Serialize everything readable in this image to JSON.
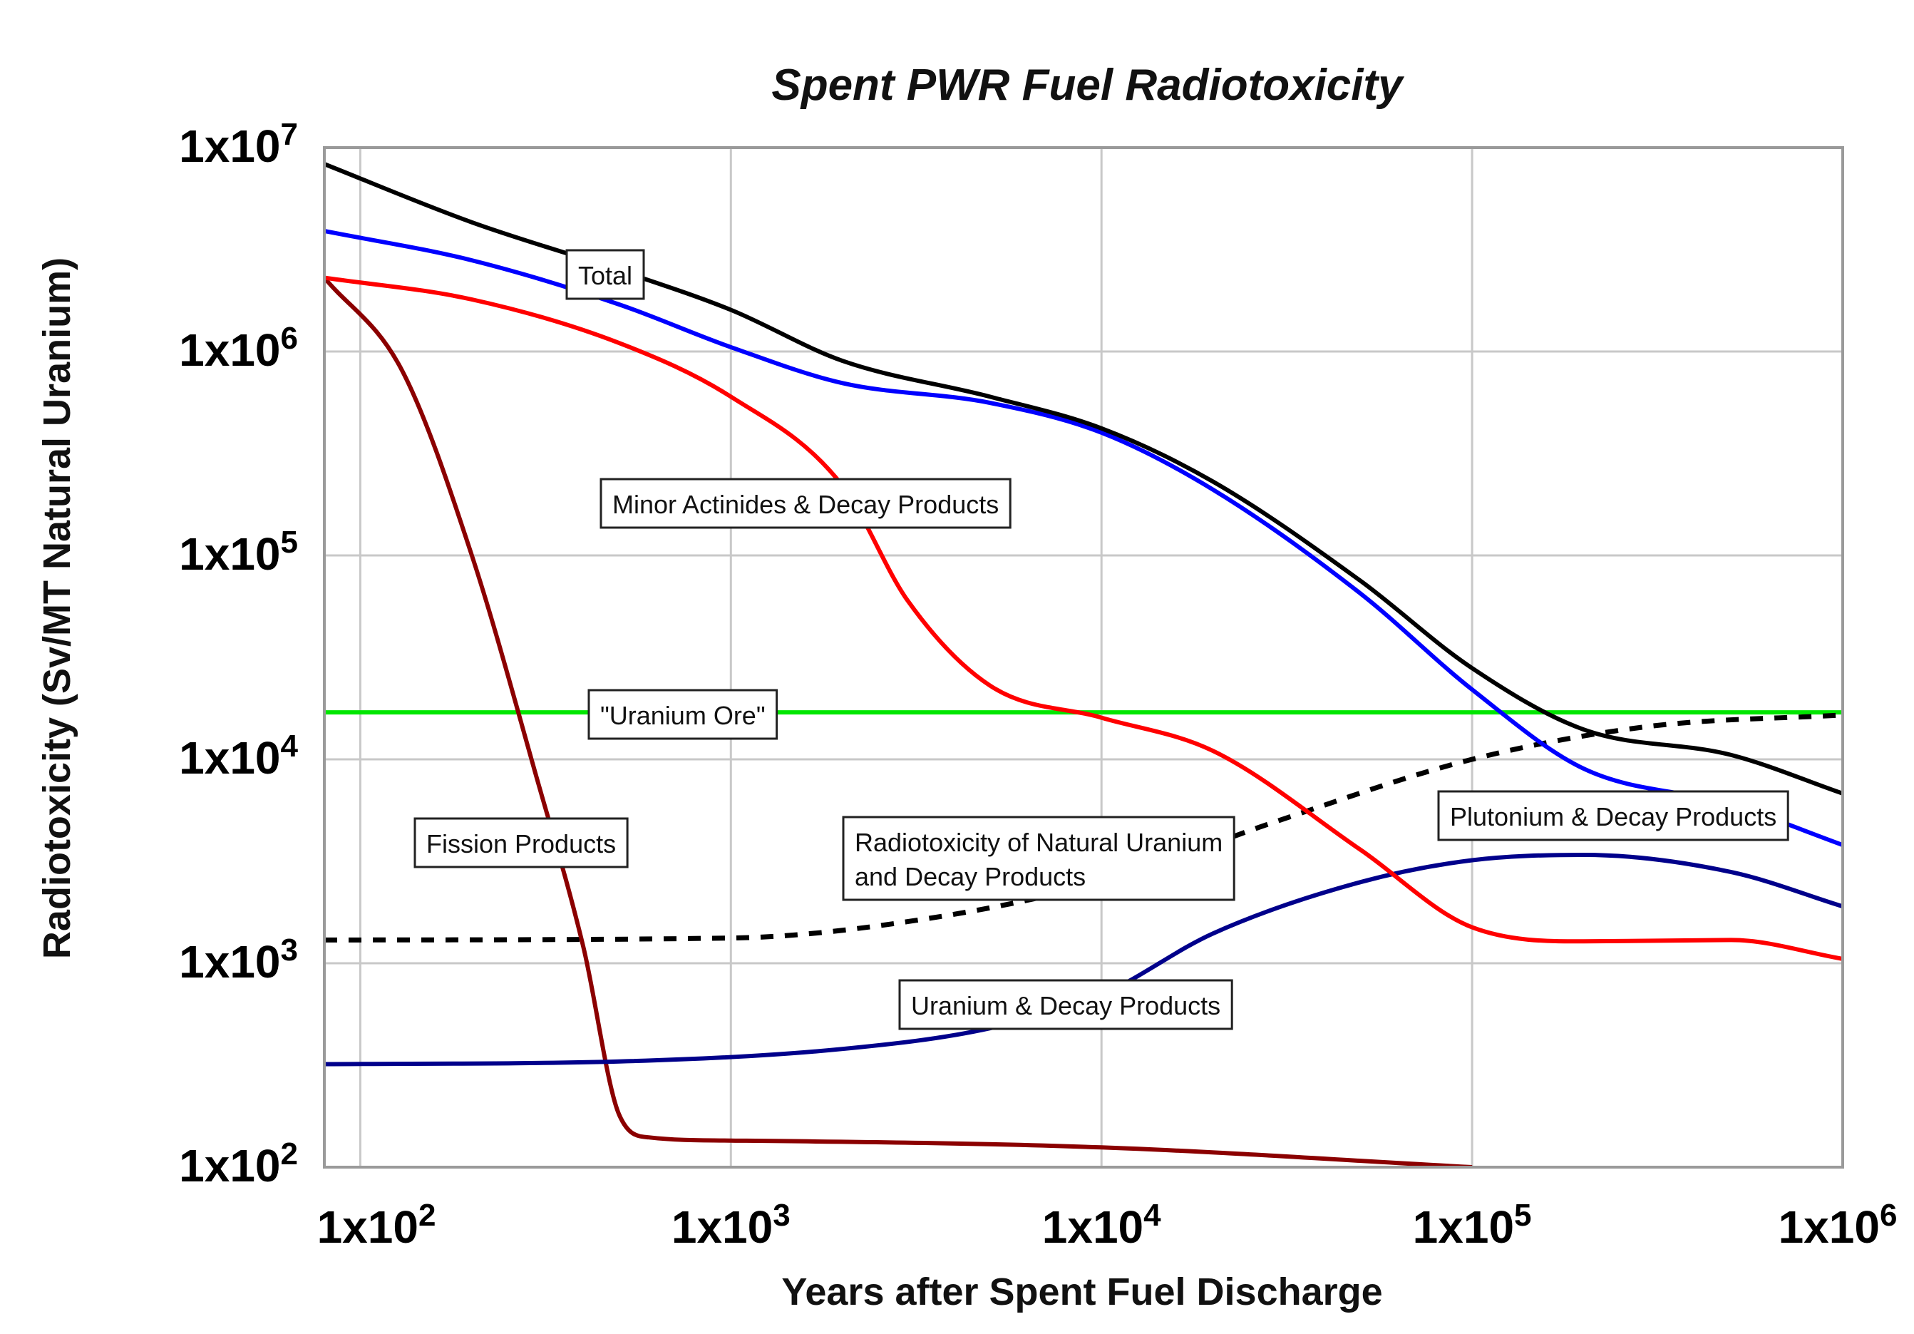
{
  "chart_data": {
    "type": "line",
    "title": "Spent PWR Fuel Radiotoxicity",
    "xlabel": "Years after Spent Fuel Discharge",
    "ylabel": "Radiotoxicity (Sv/MT Natural Uranium)",
    "x_scale": "log",
    "y_scale": "log",
    "xlim": [
      80,
      1000000
    ],
    "ylim": [
      100,
      10000000
    ],
    "grid": true,
    "x_ticks": [
      {
        "value": 100,
        "base": "1x10",
        "exp": "2"
      },
      {
        "value": 1000,
        "base": "1x10",
        "exp": "3"
      },
      {
        "value": 10000,
        "base": "1x10",
        "exp": "4"
      },
      {
        "value": 100000,
        "base": "1x10",
        "exp": "5"
      },
      {
        "value": 1000000,
        "base": "1x10",
        "exp": "6"
      }
    ],
    "y_ticks": [
      {
        "value": 100,
        "base": "1x10",
        "exp": "2"
      },
      {
        "value": 1000,
        "base": "1x10",
        "exp": "3"
      },
      {
        "value": 10000,
        "base": "1x10",
        "exp": "4"
      },
      {
        "value": 100000,
        "base": "1x10",
        "exp": "5"
      },
      {
        "value": 1000000,
        "base": "1x10",
        "exp": "6"
      },
      {
        "value": 10000000,
        "base": "1x10",
        "exp": "7"
      }
    ],
    "series": [
      {
        "name": "Total",
        "color": "#000000",
        "dash": false,
        "points": [
          [
            80,
            8300000
          ],
          [
            200,
            4300000
          ],
          [
            500,
            2500000
          ],
          [
            1000,
            1600000
          ],
          [
            2000,
            900000
          ],
          [
            5000,
            600000
          ],
          [
            10000,
            420000
          ],
          [
            20000,
            230000
          ],
          [
            50000,
            75000
          ],
          [
            100000,
            28000
          ],
          [
            200000,
            14000
          ],
          [
            500000,
            10500
          ],
          [
            1000000,
            6800
          ]
        ]
      },
      {
        "name": "Minor Actinides & Decay Products",
        "color": "#0000ff",
        "dash": false,
        "points": [
          [
            80,
            3900000
          ],
          [
            200,
            2800000
          ],
          [
            500,
            1700000
          ],
          [
            1000,
            1050000
          ],
          [
            2000,
            700000
          ],
          [
            5000,
            560000
          ],
          [
            10000,
            400000
          ],
          [
            20000,
            210000
          ],
          [
            50000,
            65000
          ],
          [
            100000,
            22000
          ],
          [
            200000,
            9000
          ],
          [
            500000,
            6000
          ],
          [
            1000000,
            3800
          ]
        ]
      },
      {
        "name": "Plutonium & Decay Products",
        "color": "#ff0000",
        "dash": false,
        "points": [
          [
            80,
            2300000
          ],
          [
            200,
            1800000
          ],
          [
            500,
            1100000
          ],
          [
            1000,
            600000
          ],
          [
            2000,
            220000
          ],
          [
            3000,
            60000
          ],
          [
            5000,
            23000
          ],
          [
            10000,
            16000
          ],
          [
            20000,
            11000
          ],
          [
            50000,
            3600
          ],
          [
            100000,
            1500
          ],
          [
            200000,
            1280
          ],
          [
            500000,
            1300
          ],
          [
            1000000,
            1050
          ]
        ]
      },
      {
        "name": "Fission Products",
        "color": "#8b0000",
        "dash": false,
        "points": [
          [
            80,
            2300000
          ],
          [
            130,
            800000
          ],
          [
            200,
            100000
          ],
          [
            300,
            8000
          ],
          [
            400,
            1200
          ],
          [
            500,
            180
          ],
          [
            600,
            140
          ],
          [
            1000,
            135
          ],
          [
            10000,
            125
          ],
          [
            100000,
            100
          ]
        ]
      },
      {
        "name": "Uranium & Decay Products",
        "color": "#00008b",
        "dash": false,
        "points": [
          [
            80,
            320
          ],
          [
            500,
            330
          ],
          [
            2000,
            380
          ],
          [
            5000,
            480
          ],
          [
            10000,
            700
          ],
          [
            20000,
            1400
          ],
          [
            50000,
            2500
          ],
          [
            100000,
            3200
          ],
          [
            200000,
            3400
          ],
          [
            500000,
            2800
          ],
          [
            1000000,
            1900
          ]
        ]
      },
      {
        "name": "Radiotoxicity of Natural Uranium and Decay Products",
        "color": "#000000",
        "dash": true,
        "points": [
          [
            80,
            1300
          ],
          [
            1000,
            1330
          ],
          [
            3000,
            1600
          ],
          [
            10000,
            2500
          ],
          [
            30000,
            5000
          ],
          [
            100000,
            10000
          ],
          [
            300000,
            14500
          ],
          [
            1000000,
            16500
          ]
        ]
      },
      {
        "name": "\"Uranium Ore\"",
        "color": "#00e600",
        "dash": false,
        "points": [
          [
            80,
            17000
          ],
          [
            1000000,
            17000
          ]
        ]
      }
    ],
    "annotations": [
      {
        "id": "total",
        "text": [
          "Total"
        ]
      },
      {
        "id": "minor-actinides",
        "text": [
          "Minor Actinides & Decay Products"
        ]
      },
      {
        "id": "uranium-ore",
        "text": [
          "\"Uranium Ore\""
        ]
      },
      {
        "id": "fission-products",
        "text": [
          "Fission Products"
        ]
      },
      {
        "id": "natural-uranium",
        "text": [
          "Radiotoxicity of Natural Uranium",
          "and Decay Products"
        ]
      },
      {
        "id": "plutonium",
        "text": [
          "Plutonium & Decay Products"
        ]
      },
      {
        "id": "uranium-decay",
        "text": [
          "Uranium & Decay Products"
        ]
      }
    ]
  }
}
